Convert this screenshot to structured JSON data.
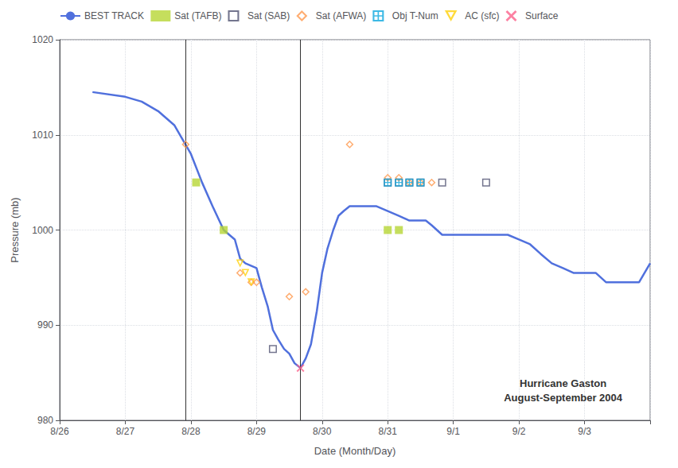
{
  "chart_data": {
    "type": "line",
    "xlabel": "Date (Month/Day)",
    "ylabel": "Pressure (mb)",
    "annotation": "Hurricane Gaston\nAugust-September 2004",
    "xlim": [
      26,
      35
    ],
    "xticks": [
      {
        "value": 26,
        "label": "8/26"
      },
      {
        "value": 27,
        "label": "8/27"
      },
      {
        "value": 28,
        "label": "8/28"
      },
      {
        "value": 29,
        "label": "8/29"
      },
      {
        "value": 30,
        "label": "8/30"
      },
      {
        "value": 31,
        "label": "8/31"
      },
      {
        "value": 32,
        "label": "9/1"
      },
      {
        "value": 33,
        "label": "9/2"
      },
      {
        "value": 34,
        "label": "9/3"
      }
    ],
    "ylim": [
      980,
      1020
    ],
    "yticks": [
      980,
      990,
      1000,
      1010,
      1020
    ],
    "grid": true,
    "legend": "upper left",
    "vlines": [
      27.92,
      29.67
    ],
    "series": [
      {
        "name": "BEST TRACK",
        "type": "line",
        "x": [
          26.5,
          27.0,
          27.25,
          27.5,
          27.75,
          28.0,
          28.17,
          28.33,
          28.5,
          28.67,
          28.75,
          28.83,
          29.0,
          29.08,
          29.17,
          29.25,
          29.33,
          29.42,
          29.5,
          29.58,
          29.67,
          29.75,
          29.83,
          29.92,
          30.0,
          30.08,
          30.17,
          30.25,
          30.33,
          30.42,
          30.5,
          30.67,
          30.83,
          31.0,
          31.17,
          31.33,
          31.5,
          31.58,
          31.67,
          31.75,
          31.83,
          32.0,
          32.17,
          32.33,
          32.5,
          32.67,
          32.83,
          33.0,
          33.17,
          33.33,
          33.5,
          33.67,
          33.83,
          34.0,
          34.17,
          34.25,
          34.33,
          34.5,
          34.67,
          34.75,
          34.83,
          35.0
        ],
        "values": [
          1014.5,
          1014.0,
          1013.5,
          1012.5,
          1011.0,
          1008.0,
          1005.0,
          1002.5,
          1000.0,
          999.0,
          997.0,
          996.5,
          996.0,
          994.0,
          992.0,
          989.5,
          988.5,
          987.5,
          987.0,
          986.0,
          985.5,
          986.5,
          988.0,
          991.5,
          995.5,
          998.0,
          1000.0,
          1001.5,
          1002.0,
          1002.5,
          1002.5,
          1002.5,
          1002.5,
          1002.0,
          1001.5,
          1001.0,
          1001.0,
          1001.0,
          1000.5,
          1000.0,
          999.5,
          999.5,
          999.5,
          999.5,
          999.5,
          999.5,
          999.5,
          999.0,
          998.5,
          997.5,
          996.5,
          996.0,
          995.5,
          995.5,
          995.5,
          995.0,
          994.5,
          994.5,
          994.5,
          994.5,
          994.5,
          996.5
        ]
      },
      {
        "name": "Sat (TAFB)",
        "type": "scatter",
        "marker": "square",
        "x": [
          28.08,
          28.5,
          31.0,
          31.17
        ],
        "values": [
          1005.0,
          1000.0,
          1000.0,
          1000.0
        ]
      },
      {
        "name": "Sat (SAB)",
        "type": "scatter",
        "marker": "square_open",
        "x": [
          29.25,
          31.0,
          31.17,
          31.33,
          31.5,
          31.83,
          32.5
        ],
        "values": [
          987.5,
          1005.0,
          1005.0,
          1005.0,
          1005.0,
          1005.0,
          1005.0
        ]
      },
      {
        "name": "Sat (AFWA)",
        "type": "scatter",
        "marker": "diamond_open",
        "x": [
          27.92,
          28.75,
          28.92,
          29.0,
          29.5,
          29.75,
          30.42,
          31.0,
          31.17,
          31.33,
          31.5,
          31.67
        ],
        "values": [
          1009.0,
          995.5,
          994.5,
          994.5,
          993.0,
          993.5,
          1009.0,
          1005.5,
          1005.5,
          1005.0,
          1005.0,
          1005.0
        ]
      },
      {
        "name": "Obj T-Num",
        "type": "scatter",
        "marker": "square_plus",
        "x": [
          31.0,
          31.17,
          31.33,
          31.5
        ],
        "values": [
          1005.0,
          1005.0,
          1005.0,
          1005.0
        ]
      },
      {
        "name": "AC (sfc)",
        "type": "scatter",
        "marker": "triangle_down_open",
        "x": [
          28.75,
          28.83,
          28.92
        ],
        "values": [
          996.5,
          995.5,
          994.5
        ]
      },
      {
        "name": "Surface",
        "type": "scatter",
        "marker": "x",
        "x": [
          29.67
        ],
        "values": [
          985.5
        ]
      }
    ]
  }
}
